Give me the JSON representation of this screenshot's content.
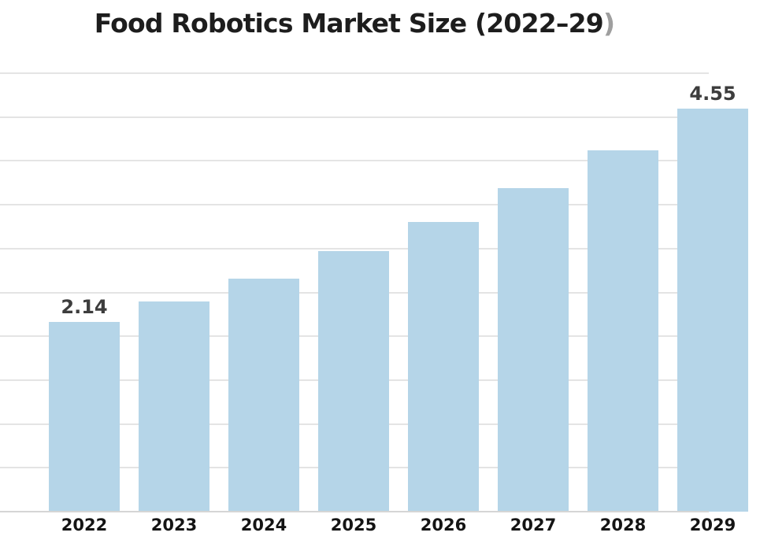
{
  "header": {
    "title_main": "Food Robotics Market Size (2022–29",
    "title_paren": ")"
  },
  "colors": {
    "background": "#ffffff",
    "bar_fill": "#b5d5e8",
    "title_text": "#1d1d1d",
    "title_paren": "#9f9f9f",
    "gridline": "#e4e4e4",
    "baseline": "#d5d5d5",
    "data_label": "#3d3d3d",
    "axis_label": "#141414"
  },
  "chart_data": {
    "type": "bar",
    "title": "Food Robotics Market Size (2022–29)",
    "categories": [
      "2022",
      "2023",
      "2024",
      "2025",
      "2026",
      "2027",
      "2028",
      "2029"
    ],
    "values": [
      2.14,
      2.37,
      2.63,
      2.94,
      3.27,
      3.65,
      4.08,
      4.55
    ],
    "data_labels": [
      "2.14",
      null,
      null,
      null,
      null,
      null,
      null,
      "4.55"
    ],
    "xlabel": "",
    "ylabel": "",
    "ylim": [
      0,
      5
    ],
    "gridline_step": 0.5,
    "grid": true,
    "legend": false,
    "y_tick_labels_visible": false,
    "clipped_right_edge": true
  }
}
